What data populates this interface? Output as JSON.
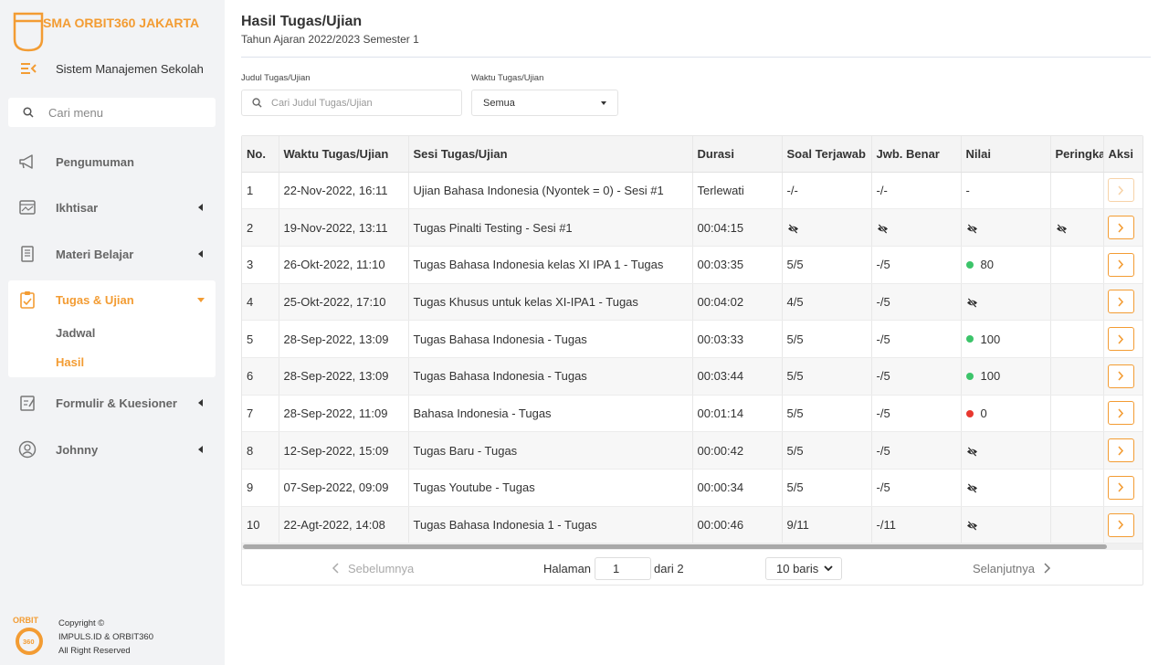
{
  "sidebar": {
    "school_name": "SMA ORBIT360 JAKARTA",
    "system_name": "Sistem Manajemen Sekolah",
    "search_placeholder": "Cari menu",
    "menu": [
      {
        "label": "Pengumuman",
        "icon": "megaphone-icon",
        "has_caret": false
      },
      {
        "label": "Ikhtisar",
        "icon": "chart-icon",
        "has_caret": true
      },
      {
        "label": "Materi Belajar",
        "icon": "book-icon",
        "has_caret": true
      },
      {
        "label": "Tugas & Ujian",
        "icon": "clipboard-icon",
        "has_caret": true,
        "active": true
      },
      {
        "label": "Formulir & Kuesioner",
        "icon": "form-icon",
        "has_caret": true
      },
      {
        "label": "Johnny",
        "icon": "user-icon",
        "has_caret": true
      }
    ],
    "submenu": [
      {
        "label": "Jadwal",
        "active": false
      },
      {
        "label": "Hasil",
        "active": true
      }
    ],
    "footer": {
      "line1": "Copyright ©",
      "line2": "IMPULS.ID & ORBIT360",
      "line3": "All Right Reserved",
      "logo_text": "ORBIT",
      "logo_sub": "360"
    }
  },
  "header": {
    "title": "Hasil Tugas/Ujian",
    "subtitle": "Tahun Ajaran 2022/2023 Semester 1"
  },
  "filters": {
    "title_label": "Judul Tugas/Ujian",
    "title_placeholder": "Cari Judul Tugas/Ujian",
    "time_label": "Waktu Tugas/Ujian",
    "time_value": "Semua"
  },
  "table": {
    "columns": [
      "No.",
      "Waktu Tugas/Ujian",
      "Sesi Tugas/Ujian",
      "Durasi",
      "Soal Terjawab",
      "Jwb. Benar",
      "Nilai",
      "Peringkat",
      "Aksi"
    ],
    "rows": [
      {
        "no": "1",
        "waktu": "22-Nov-2022, 16:11",
        "sesi": "Ujian Bahasa Indonesia (Nyontek = 0) - Sesi #1",
        "durasi": "Terlewati",
        "soal": "-/-",
        "benar": "-/-",
        "nilai": "-",
        "nilai_status": "text",
        "peringkat": "",
        "aksi_enabled": false
      },
      {
        "no": "2",
        "waktu": "19-Nov-2022, 13:11",
        "sesi": "Tugas Pinalti Testing - Sesi #1",
        "durasi": "00:04:15",
        "soal": "hidden",
        "benar": "hidden",
        "nilai": "hidden",
        "nilai_status": "hidden",
        "peringkat": "hidden",
        "aksi_enabled": true
      },
      {
        "no": "3",
        "waktu": "26-Okt-2022, 11:10",
        "sesi": "Tugas Bahasa Indonesia kelas XI IPA 1 - Tugas",
        "durasi": "00:03:35",
        "soal": "5/5",
        "benar": "-/5",
        "nilai": "80",
        "nilai_status": "pass",
        "peringkat": "",
        "aksi_enabled": true
      },
      {
        "no": "4",
        "waktu": "25-Okt-2022, 17:10",
        "sesi": "Tugas Khusus untuk kelas XI-IPA1 - Tugas",
        "durasi": "00:04:02",
        "soal": "4/5",
        "benar": "-/5",
        "nilai": "hidden",
        "nilai_status": "hidden",
        "peringkat": "",
        "aksi_enabled": true
      },
      {
        "no": "5",
        "waktu": "28-Sep-2022, 13:09",
        "sesi": "Tugas Bahasa Indonesia - Tugas",
        "durasi": "00:03:33",
        "soal": "5/5",
        "benar": "-/5",
        "nilai": "100",
        "nilai_status": "pass",
        "peringkat": "",
        "aksi_enabled": true
      },
      {
        "no": "6",
        "waktu": "28-Sep-2022, 13:09",
        "sesi": "Tugas Bahasa Indonesia - Tugas",
        "durasi": "00:03:44",
        "soal": "5/5",
        "benar": "-/5",
        "nilai": "100",
        "nilai_status": "pass",
        "peringkat": "",
        "aksi_enabled": true
      },
      {
        "no": "7",
        "waktu": "28-Sep-2022, 11:09",
        "sesi": "Bahasa Indonesia - Tugas",
        "durasi": "00:01:14",
        "soal": "5/5",
        "benar": "-/5",
        "nilai": "0",
        "nilai_status": "fail",
        "peringkat": "",
        "aksi_enabled": true
      },
      {
        "no": "8",
        "waktu": "12-Sep-2022, 15:09",
        "sesi": "Tugas Baru - Tugas",
        "durasi": "00:00:42",
        "soal": "5/5",
        "benar": "-/5",
        "nilai": "hidden",
        "nilai_status": "hidden",
        "peringkat": "",
        "aksi_enabled": true
      },
      {
        "no": "9",
        "waktu": "07-Sep-2022, 09:09",
        "sesi": "Tugas Youtube - Tugas",
        "durasi": "00:00:34",
        "soal": "5/5",
        "benar": "-/5",
        "nilai": "hidden",
        "nilai_status": "hidden",
        "peringkat": "",
        "aksi_enabled": true
      },
      {
        "no": "10",
        "waktu": "22-Agt-2022, 14:08",
        "sesi": "Tugas Bahasa Indonesia 1 - Tugas",
        "durasi": "00:00:46",
        "soal": "9/11",
        "benar": "-/11",
        "nilai": "hidden",
        "nilai_status": "hidden",
        "peringkat": "",
        "aksi_enabled": true
      }
    ]
  },
  "pagination": {
    "prev_label": "Sebelumnya",
    "next_label": "Selanjutnya",
    "page_label": "Halaman",
    "page_value": "1",
    "of_label": "dari 2",
    "rows_label": "10 baris"
  },
  "colors": {
    "accent": "#f39c33",
    "pass": "#3cc46a",
    "fail": "#e8382f"
  }
}
